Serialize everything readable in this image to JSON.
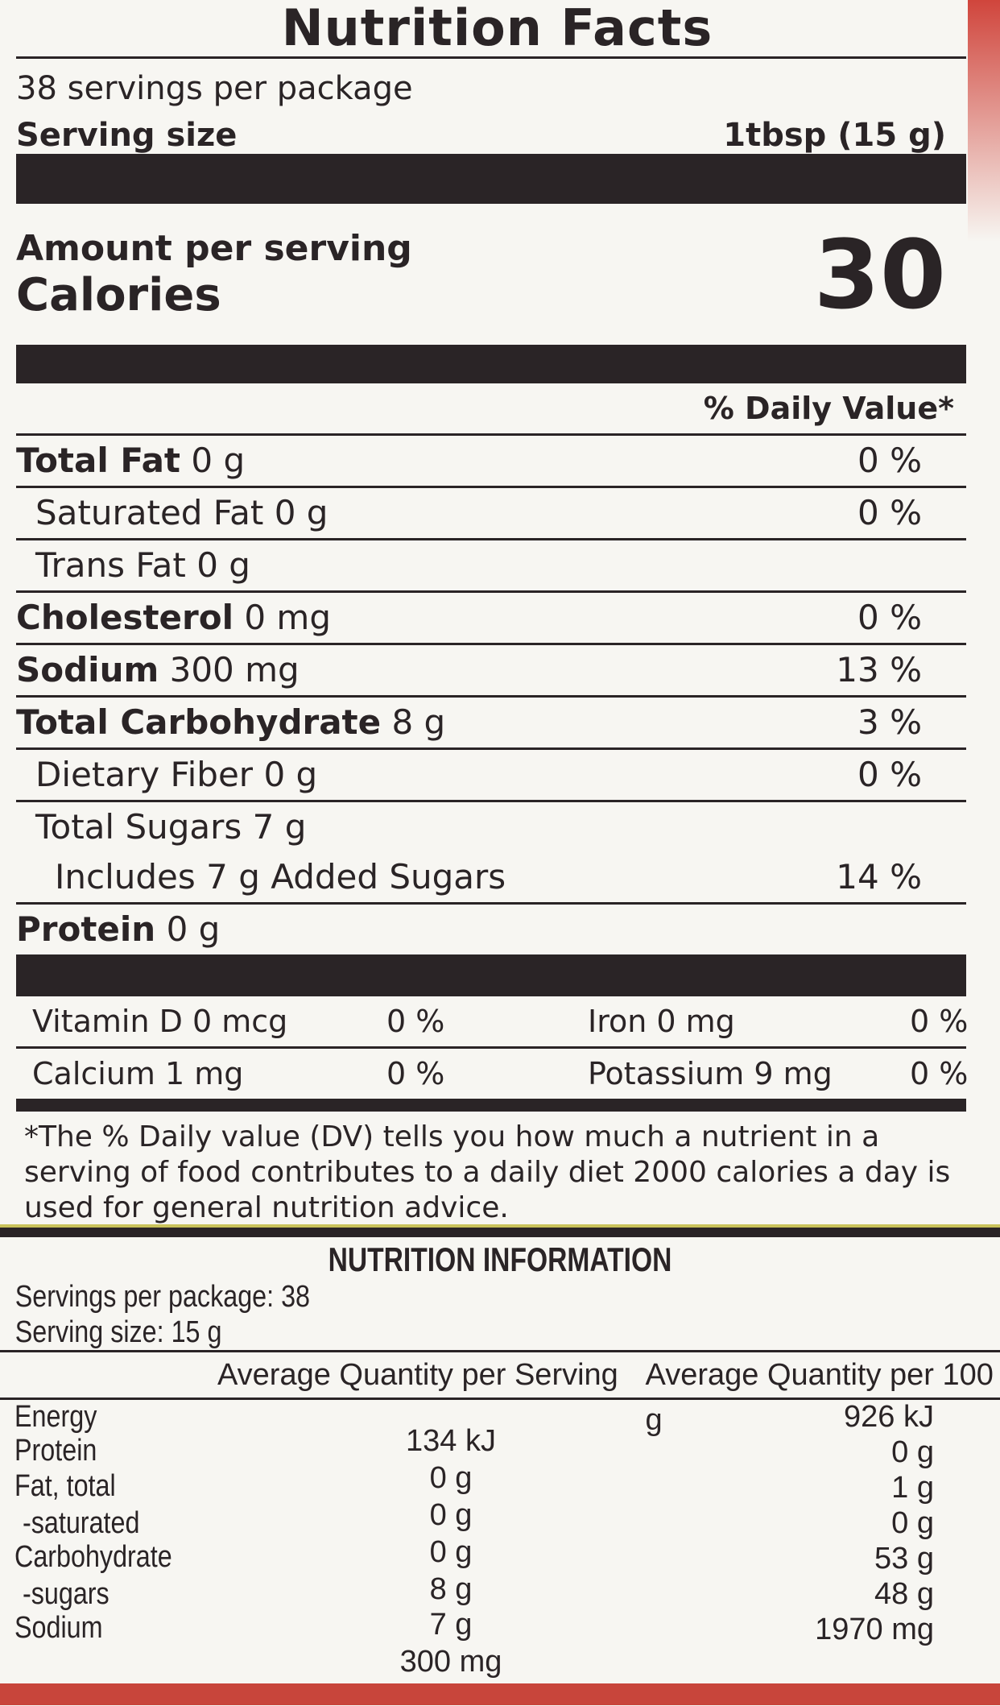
{
  "facts": {
    "title": "Nutrition Facts",
    "servings_per_package": "38 servings per package",
    "serving_size_label": "Serving size",
    "serving_size_value": "1tbsp (15 g)",
    "amount_per_serving": "Amount per serving",
    "calories_label": "Calories",
    "calories_value": "30",
    "dv_header": "% Daily Value*",
    "rows": [
      {
        "label": "Total Fat",
        "amount": "0 g",
        "dv": "0 %"
      },
      {
        "label": "Saturated Fat",
        "amount": "0 g",
        "dv": "0 %"
      },
      {
        "label": "Trans Fat",
        "amount": "0 g",
        "dv": ""
      },
      {
        "label": "Cholesterol",
        "amount": "0 mg",
        "dv": "0 %"
      },
      {
        "label": "Sodium",
        "amount": "300 mg",
        "dv": "13 %"
      },
      {
        "label": "Total Carbohydrate",
        "amount": "8 g",
        "dv": "3 %"
      },
      {
        "label": "Dietary Fiber",
        "amount": "0 g",
        "dv": "0 %"
      },
      {
        "label": "Total Sugars",
        "amount": "7 g",
        "dv": ""
      },
      {
        "label": "Includes 7 g Added Sugars",
        "amount": "",
        "dv": "14 %"
      },
      {
        "label": "Protein",
        "amount": "0 g",
        "dv": ""
      }
    ],
    "vitamins": [
      {
        "label": "Vitamin D 0 mcg",
        "dv": "0 %",
        "label2": "Iron 0 mg",
        "dv2": "0 %"
      },
      {
        "label": "Calcium 1 mg",
        "dv": "0 %",
        "label2": "Potassium 9 mg",
        "dv2": "0 %"
      }
    ],
    "footnote": "*The % Daily value (DV) tells you how much a nutrient in a serving of food contributes to a daily diet 2000 calories a day is used for general nutrition advice."
  },
  "info": {
    "title": "NUTRITION INFORMATION",
    "servings": "Servings per package: 38",
    "serving_size": "Serving size: 15 g",
    "col1": "Average Quantity per Serving",
    "col2": "Average Quantity per 100 g",
    "labels": [
      "Energy",
      "Protein",
      "Fat, total",
      "-saturated",
      "Carbohydrate",
      "-sugars",
      "Sodium"
    ],
    "per_serving": [
      "134 kJ",
      "0 g",
      "0 g",
      "0 g",
      "8 g",
      "7 g",
      "300 mg"
    ],
    "per_100g": [
      "926 kJ",
      "0 g",
      "1 g",
      "0 g",
      "53 g",
      "48 g",
      "1970 mg"
    ]
  }
}
